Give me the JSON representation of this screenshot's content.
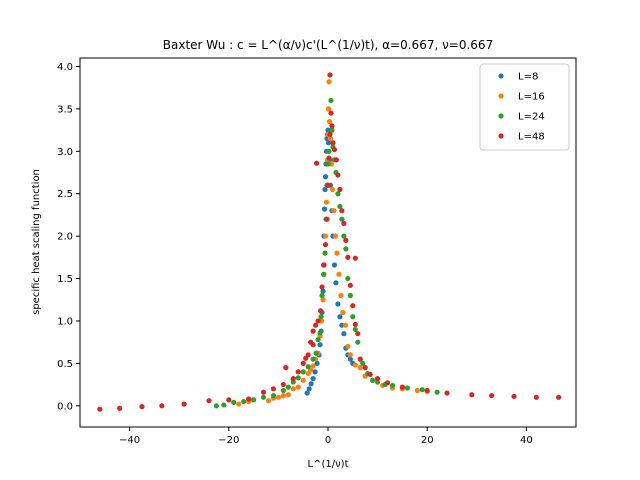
{
  "chart_data": {
    "type": "scatter",
    "title": "Baxter Wu : c = L^(α/ν)c'(L^(1/ν)t), α=0.667, ν=0.667",
    "xlabel": "L^(1/ν)t",
    "ylabel": "specific heat scaling function",
    "xlim": [
      -50,
      50
    ],
    "ylim": [
      -0.25,
      4.1
    ],
    "xticks": [
      -40,
      -20,
      0,
      20,
      40
    ],
    "yticks": [
      0.0,
      0.5,
      1.0,
      1.5,
      2.0,
      2.5,
      3.0,
      3.5,
      4.0
    ],
    "xtick_labels": [
      "−40",
      "−20",
      "0",
      "20",
      "40"
    ],
    "ytick_labels": [
      "0.0",
      "0.5",
      "1.0",
      "1.5",
      "2.0",
      "2.5",
      "3.0",
      "3.5",
      "4.0"
    ],
    "legend": {
      "position": "top-right"
    },
    "grid": false,
    "series": [
      {
        "name": "L=8",
        "color": "#1f77b4",
        "points": [
          [
            -4.2,
            0.15
          ],
          [
            -3.8,
            0.2
          ],
          [
            -3.4,
            0.26
          ],
          [
            -3.0,
            0.32
          ],
          [
            -2.6,
            0.4
          ],
          [
            -2.2,
            0.5
          ],
          [
            -1.8,
            0.6
          ],
          [
            -1.6,
            0.72
          ],
          [
            -1.4,
            0.88
          ],
          [
            -1.2,
            1.1
          ],
          [
            -1.0,
            1.35
          ],
          [
            -0.9,
            1.66
          ],
          [
            -0.8,
            2.0
          ],
          [
            -0.7,
            2.32
          ],
          [
            -0.6,
            2.55
          ],
          [
            -0.5,
            2.7
          ],
          [
            -0.4,
            2.85
          ],
          [
            -0.3,
            3.0
          ],
          [
            -0.2,
            3.15
          ],
          [
            -0.1,
            3.2
          ],
          [
            0.0,
            3.25
          ],
          [
            0.1,
            3.1
          ],
          [
            0.3,
            2.9
          ],
          [
            0.5,
            2.6
          ],
          [
            0.8,
            2.3
          ],
          [
            1.0,
            2.0
          ],
          [
            1.3,
            1.66
          ],
          [
            1.6,
            1.45
          ],
          [
            2.0,
            1.2
          ],
          [
            2.4,
            1.05
          ],
          [
            2.8,
            0.95
          ],
          [
            3.2,
            0.85
          ],
          [
            3.6,
            0.68
          ],
          [
            4.0,
            0.6
          ],
          [
            4.5,
            0.55
          ],
          [
            5.0,
            0.5
          ]
        ]
      },
      {
        "name": "L=16",
        "color": "#ff7f0e",
        "points": [
          [
            -18.0,
            0.02
          ],
          [
            -16.0,
            0.05
          ],
          [
            -12.0,
            0.06
          ],
          [
            -11.0,
            0.09
          ],
          [
            -10.0,
            0.1
          ],
          [
            -9.0,
            0.12
          ],
          [
            -8.0,
            0.13
          ],
          [
            -7.0,
            0.2
          ],
          [
            -6.0,
            0.22
          ],
          [
            -5.0,
            0.3
          ],
          [
            -4.0,
            0.38
          ],
          [
            -3.5,
            0.42
          ],
          [
            -3.0,
            0.47
          ],
          [
            -2.5,
            0.55
          ],
          [
            -2.0,
            0.62
          ],
          [
            -1.6,
            0.82
          ],
          [
            -1.3,
            1.0
          ],
          [
            -1.0,
            1.25
          ],
          [
            -0.8,
            1.55
          ],
          [
            -0.6,
            1.8
          ],
          [
            -0.5,
            2.0
          ],
          [
            -0.3,
            2.4
          ],
          [
            -0.2,
            2.6
          ],
          [
            -0.1,
            2.9
          ],
          [
            0.0,
            3.2
          ],
          [
            0.1,
            3.5
          ],
          [
            0.2,
            3.82
          ],
          [
            0.3,
            3.35
          ],
          [
            0.5,
            3.15
          ],
          [
            0.7,
            2.85
          ],
          [
            0.9,
            2.55
          ],
          [
            1.2,
            2.3
          ],
          [
            1.5,
            2.0
          ],
          [
            1.8,
            1.8
          ],
          [
            2.2,
            1.55
          ],
          [
            2.6,
            1.3
          ],
          [
            3.0,
            1.1
          ],
          [
            3.5,
            0.95
          ],
          [
            4.0,
            0.7
          ],
          [
            4.5,
            0.6
          ],
          [
            5.5,
            0.48
          ],
          [
            6.5,
            0.45
          ],
          [
            7.5,
            0.35
          ],
          [
            9.0,
            0.3
          ],
          [
            11.0,
            0.24
          ],
          [
            13.0,
            0.21
          ],
          [
            15.0,
            0.2
          ],
          [
            18.0,
            0.18
          ],
          [
            20.0,
            0.17
          ]
        ]
      },
      {
        "name": "L=24",
        "color": "#2ca02c",
        "points": [
          [
            -22.5,
            0.0
          ],
          [
            -21.0,
            0.01
          ],
          [
            -19.0,
            0.04
          ],
          [
            -17.0,
            0.05
          ],
          [
            -15.0,
            0.07
          ],
          [
            -13.0,
            0.1
          ],
          [
            -11.0,
            0.12
          ],
          [
            -9.0,
            0.18
          ],
          [
            -8.0,
            0.22
          ],
          [
            -7.0,
            0.28
          ],
          [
            -6.0,
            0.33
          ],
          [
            -5.0,
            0.4
          ],
          [
            -4.0,
            0.46
          ],
          [
            -3.0,
            0.55
          ],
          [
            -2.4,
            0.62
          ],
          [
            -2.0,
            0.78
          ],
          [
            -1.6,
            0.86
          ],
          [
            -1.4,
            1.05
          ],
          [
            -1.2,
            1.3
          ],
          [
            -0.9,
            1.55
          ],
          [
            -0.6,
            1.8
          ],
          [
            -0.4,
            2.2
          ],
          [
            -0.2,
            2.6
          ],
          [
            0.0,
            2.85
          ],
          [
            0.2,
            3.0
          ],
          [
            0.4,
            3.2
          ],
          [
            0.6,
            3.6
          ],
          [
            0.8,
            3.25
          ],
          [
            1.0,
            3.05
          ],
          [
            1.3,
            2.9
          ],
          [
            1.6,
            2.75
          ],
          [
            2.0,
            2.5
          ],
          [
            2.4,
            2.35
          ],
          [
            2.8,
            2.2
          ],
          [
            3.2,
            2.0
          ],
          [
            3.6,
            1.85
          ],
          [
            4.0,
            1.5
          ],
          [
            4.5,
            1.3
          ],
          [
            5.0,
            1.05
          ],
          [
            5.5,
            0.9
          ],
          [
            6.0,
            0.75
          ],
          [
            7.0,
            0.5
          ],
          [
            8.0,
            0.38
          ],
          [
            9.0,
            0.3
          ],
          [
            10.0,
            0.28
          ],
          [
            11.5,
            0.25
          ],
          [
            13.0,
            0.24
          ],
          [
            16.0,
            0.21
          ],
          [
            19.0,
            0.19
          ],
          [
            22.0,
            0.16
          ]
        ]
      },
      {
        "name": "L=48",
        "color": "#d62728",
        "points": [
          [
            -46.0,
            -0.04
          ],
          [
            -42.0,
            -0.03
          ],
          [
            -37.5,
            -0.01
          ],
          [
            -33.5,
            0.0
          ],
          [
            -29.0,
            0.02
          ],
          [
            -24.0,
            0.06
          ],
          [
            -20.0,
            0.07
          ],
          [
            -16.0,
            0.08
          ],
          [
            -13.0,
            0.16
          ],
          [
            -11.0,
            0.2
          ],
          [
            -9.0,
            0.25
          ],
          [
            -7.0,
            0.32
          ],
          [
            -6.0,
            0.4
          ],
          [
            -5.0,
            0.5
          ],
          [
            -4.5,
            0.56
          ],
          [
            -4.0,
            0.6
          ],
          [
            -3.5,
            0.75
          ],
          [
            -3.0,
            0.88
          ],
          [
            -2.5,
            0.95
          ],
          [
            -2.0,
            1.0
          ],
          [
            -1.5,
            1.12
          ],
          [
            -1.2,
            1.4
          ],
          [
            -0.8,
            1.66
          ],
          [
            -0.5,
            1.9
          ],
          [
            -0.2,
            2.2
          ],
          [
            0.0,
            2.6
          ],
          [
            0.2,
            2.92
          ],
          [
            0.4,
            3.2
          ],
          [
            0.6,
            3.45
          ],
          [
            0.8,
            3.3
          ],
          [
            1.0,
            3.1
          ],
          [
            1.3,
            3.02
          ],
          [
            1.7,
            2.9
          ],
          [
            2.0,
            2.72
          ],
          [
            2.4,
            2.55
          ],
          [
            2.8,
            2.3
          ],
          [
            3.2,
            2.15
          ],
          [
            3.6,
            1.95
          ],
          [
            4.0,
            1.75
          ],
          [
            5.5,
            1.74
          ],
          [
            4.5,
            1.42
          ],
          [
            5.0,
            1.18
          ],
          [
            5.5,
            0.96
          ],
          [
            6.0,
            0.85
          ],
          [
            6.5,
            0.55
          ],
          [
            7.5,
            0.45
          ],
          [
            8.5,
            0.37
          ],
          [
            10.0,
            0.32
          ],
          [
            12.0,
            0.27
          ],
          [
            15.0,
            0.22
          ],
          [
            20.0,
            0.18
          ],
          [
            24.0,
            0.15
          ],
          [
            29.0,
            0.13
          ],
          [
            33.0,
            0.12
          ],
          [
            37.5,
            0.11
          ],
          [
            42.0,
            0.1
          ],
          [
            46.5,
            0.1
          ],
          [
            -8.5,
            0.45
          ],
          [
            -3.0,
            0.72
          ],
          [
            0.4,
            3.9
          ],
          [
            -2.3,
            2.86
          ]
        ]
      }
    ]
  }
}
